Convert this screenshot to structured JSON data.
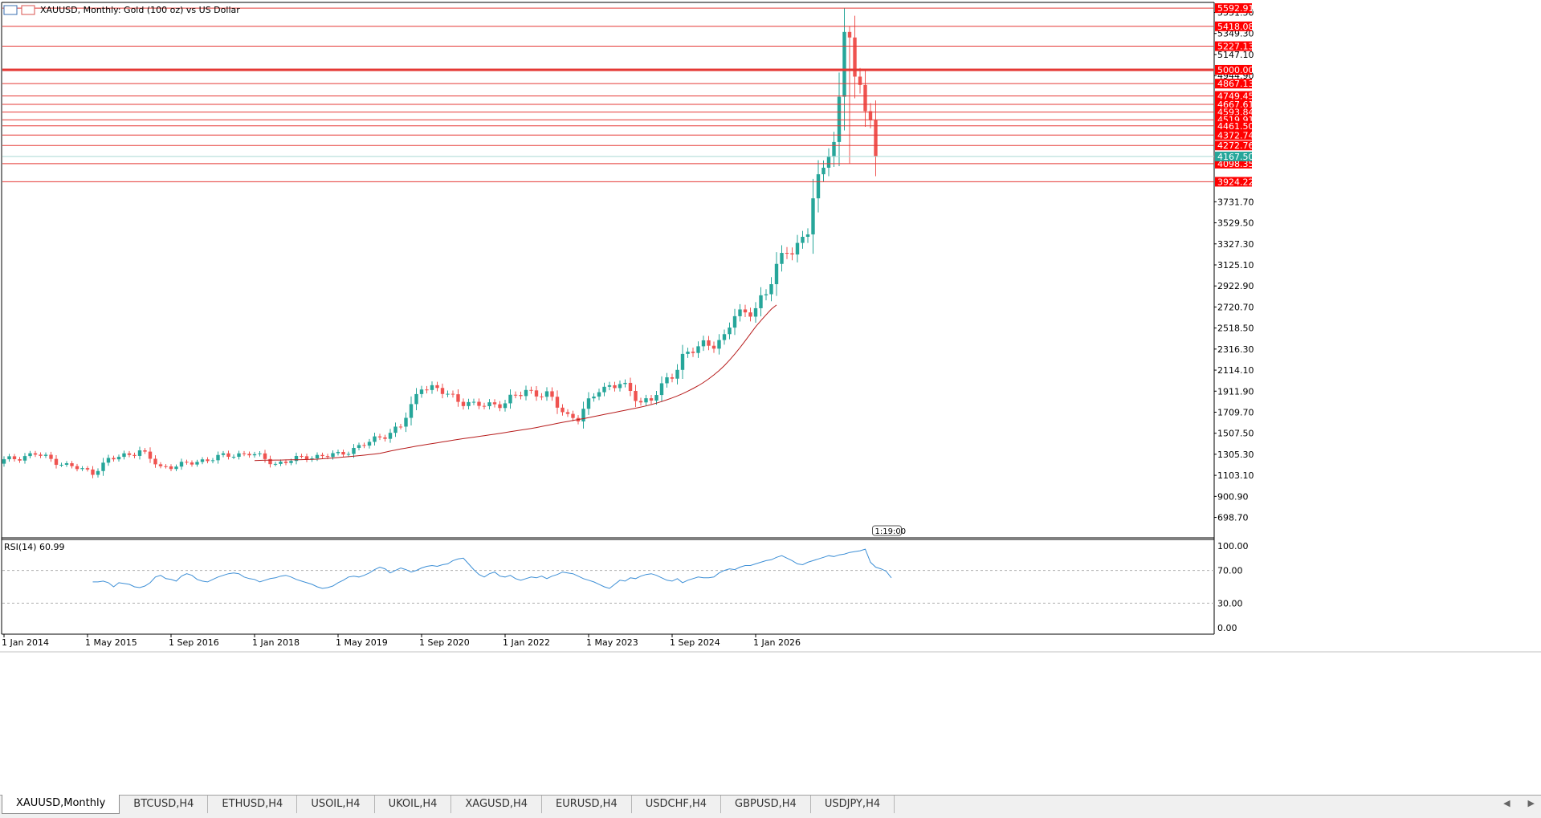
{
  "header": {
    "symbol_title": "XAUUSD, Monthly:  Gold (100 oz) vs US Dollar",
    "icons": [
      "chart-window-icon",
      "one-click-trading-icon"
    ]
  },
  "colors": {
    "bull": "#26a69a",
    "bear": "#ef5350",
    "level_line": "#e53935",
    "level_label_bg": "#ff0000",
    "ma_line": "#b71c1c",
    "rsi_line": "#3d8fd6",
    "bid_label_bg": "#26a69a"
  },
  "chart_data": [
    {
      "type": "candlestick",
      "title": "XAUUSD, Monthly:  Gold (100 oz) vs US Dollar",
      "y_axis_labels": [
        "5551.50",
        "5349.30",
        "5147.10",
        "4944.90",
        "3731.70",
        "3529.50",
        "3327.30",
        "3125.10",
        "2922.90",
        "2720.70",
        "2518.50",
        "2316.30",
        "2114.10",
        "1911.90",
        "1709.70",
        "1507.50",
        "1305.30",
        "1103.10",
        "900.90",
        "698.70"
      ],
      "x_axis_labels": [
        "1 Jan 2014",
        "1 May 2015",
        "1 Sep 2016",
        "1 Jan 2018",
        "1 May 2019",
        "1 Sep 2020",
        "1 Jan 2022",
        "1 May 2023",
        "1 Sep 2024",
        "1 Jan 2026"
      ],
      "x_axis_label_months": [
        0,
        16,
        32,
        48,
        64,
        80,
        96,
        112,
        128,
        144
      ],
      "ylim": [
        510,
        5640
      ],
      "horizontal_levels": [
        {
          "price": 5592.91,
          "label": "5592.91",
          "emphasis": false
        },
        {
          "price": 5418.08,
          "label": "5418.08",
          "emphasis": false
        },
        {
          "price": 5227.13,
          "label": "5227.13",
          "emphasis": false
        },
        {
          "price": 5000.0,
          "label": "5000.00",
          "emphasis": true
        },
        {
          "price": 4867.13,
          "label": "4867.13",
          "emphasis": false
        },
        {
          "price": 4749.45,
          "label": "4749.45",
          "emphasis": false
        },
        {
          "price": 4667.61,
          "label": "4667.61",
          "emphasis": false
        },
        {
          "price": 4593.84,
          "label": "4593.84",
          "emphasis": false
        },
        {
          "price": 4519.91,
          "label": "4519.91",
          "emphasis": false
        },
        {
          "price": 4461.5,
          "label": "4461.50",
          "emphasis": false
        },
        {
          "price": 4372.74,
          "label": "4372.74",
          "emphasis": false
        },
        {
          "price": 4272.76,
          "label": "4272.76",
          "emphasis": false
        },
        {
          "price": 4098.35,
          "label": "4098.35",
          "emphasis": false
        },
        {
          "price": 3924.22,
          "label": "3924.22",
          "emphasis": false
        }
      ],
      "bid_price": {
        "price": 4167.5,
        "label": "4167.50"
      },
      "countdown": "1:19:00",
      "moving_average_start_month": 48,
      "moving_average": [
        1245,
        1247,
        1248,
        1249,
        1250,
        1250,
        1251,
        1252,
        1253,
        1254,
        1255,
        1256,
        1258,
        1262,
        1266,
        1270,
        1274,
        1278,
        1282,
        1287,
        1292,
        1297,
        1302,
        1308,
        1314,
        1325,
        1336,
        1346,
        1356,
        1365,
        1374,
        1383,
        1392,
        1400,
        1408,
        1416,
        1424,
        1432,
        1440,
        1448,
        1456,
        1463,
        1470,
        1477,
        1484,
        1491,
        1498,
        1506,
        1514,
        1522,
        1530,
        1538,
        1546,
        1553,
        1562,
        1572,
        1582,
        1592,
        1602,
        1612,
        1621,
        1630,
        1639,
        1648,
        1658,
        1668,
        1678,
        1688,
        1698,
        1708,
        1718,
        1728,
        1738,
        1748,
        1759,
        1770,
        1783,
        1797,
        1812,
        1829,
        1847,
        1866,
        1888,
        1912,
        1937,
        1964,
        1995,
        2030,
        2068,
        2110,
        2157,
        2210,
        2268,
        2330,
        2395,
        2463,
        2530,
        2590,
        2645,
        2700,
        2740
      ]
    },
    {
      "type": "line",
      "title": "RSI(14) 60.99",
      "y_axis_labels": [
        "100.00",
        "70.00",
        "30.00",
        "0.00"
      ],
      "levels": [
        70,
        30
      ],
      "ylim": [
        0,
        100
      ],
      "start_month": 17,
      "values": [
        56,
        56,
        57,
        55,
        50,
        55,
        54,
        53,
        50,
        49,
        51,
        55,
        62,
        64,
        60,
        59,
        57,
        63,
        66,
        64,
        59,
        57,
        56,
        59,
        62,
        64,
        66,
        67,
        66,
        62,
        60,
        59,
        56,
        58,
        60,
        61,
        63,
        64,
        62,
        59,
        57,
        55,
        53,
        50,
        48,
        49,
        51,
        55,
        58,
        62,
        63,
        62,
        64,
        67,
        71,
        74,
        72,
        67,
        70,
        73,
        71,
        68,
        70,
        73,
        75,
        76,
        75,
        77,
        78,
        82,
        84,
        85,
        78,
        71,
        65,
        62,
        66,
        68,
        63,
        62,
        64,
        60,
        58,
        60,
        62,
        61,
        63,
        60,
        63,
        65,
        68,
        67,
        66,
        63,
        60,
        58,
        56,
        53,
        50,
        48,
        53,
        58,
        57,
        61,
        60,
        63,
        65,
        66,
        64,
        61,
        58,
        57,
        60,
        55,
        58,
        60,
        62,
        61,
        61,
        62,
        67,
        70,
        72,
        71,
        74,
        76,
        76,
        78,
        80,
        82,
        83,
        86,
        88,
        85,
        82,
        78,
        77,
        80,
        82,
        84,
        86,
        88,
        87,
        89,
        90,
        92,
        93,
        94,
        96,
        80,
        74,
        72,
        69,
        61
      ]
    }
  ],
  "tab_bar": {
    "tabs": [
      {
        "label": "XAUUSD,Monthly",
        "active": true
      },
      {
        "label": "BTCUSD,H4",
        "active": false
      },
      {
        "label": "ETHUSD,H4",
        "active": false
      },
      {
        "label": "USOIL,H4",
        "active": false
      },
      {
        "label": "UKOIL,H4",
        "active": false
      },
      {
        "label": "XAGUSD,H4",
        "active": false
      },
      {
        "label": "EURUSD,H4",
        "active": false
      },
      {
        "label": "USDCHF,H4",
        "active": false
      },
      {
        "label": "GBPUSD,H4",
        "active": false
      },
      {
        "label": "USDJPY,H4",
        "active": false
      }
    ],
    "scroll_icons": [
      "scroll-left-icon",
      "scroll-right-icon"
    ]
  }
}
